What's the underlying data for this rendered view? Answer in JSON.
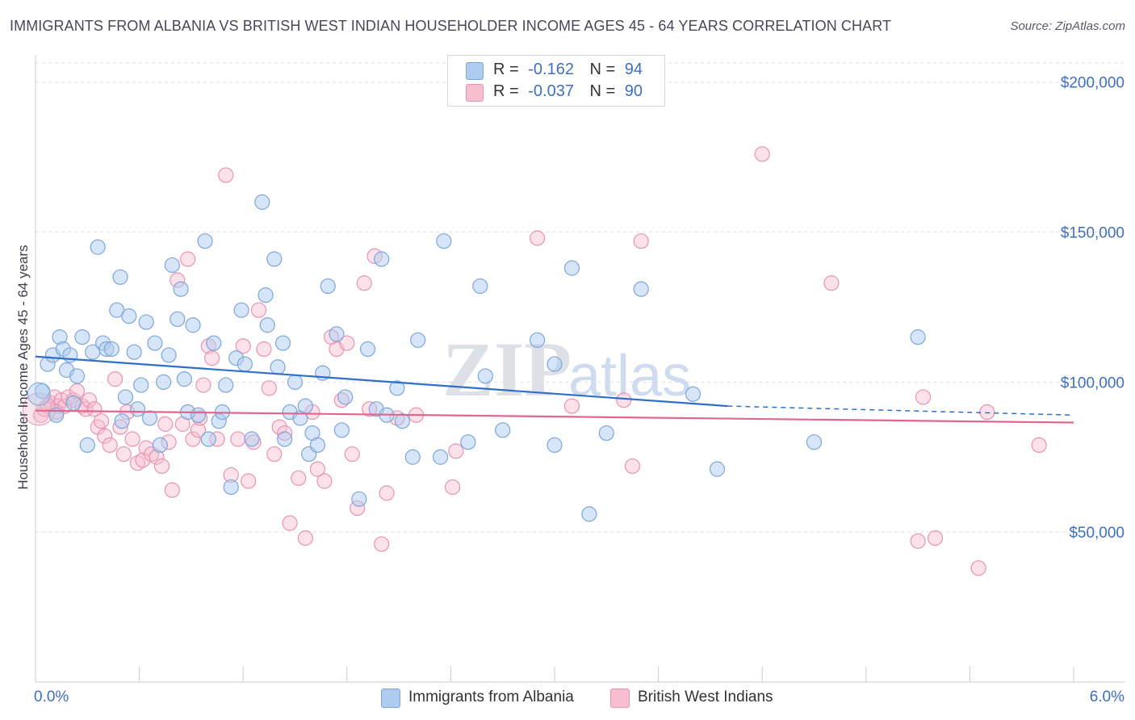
{
  "header": {
    "title": "IMMIGRANTS FROM ALBANIA VS BRITISH WEST INDIAN HOUSEHOLDER INCOME AGES 45 - 64 YEARS CORRELATION CHART",
    "source": "Source: ZipAtlas.com"
  },
  "legend": {
    "rows": [
      {
        "r_label": "R =",
        "r_value": "-0.162",
        "n_label": "N =",
        "n_value": "94"
      },
      {
        "r_label": "R =",
        "r_value": "-0.037",
        "n_label": "N =",
        "n_value": "90"
      }
    ]
  },
  "bottom_legend": {
    "items": [
      "Immigrants from Albania",
      "British West Indians"
    ]
  },
  "watermark": {
    "zip": "ZIP",
    "atlas": "atlas"
  },
  "colors": {
    "albania_fill": "#aecbf0",
    "albania_stroke": "#7ea6d9",
    "albania_line": "#2f6fcc",
    "bwi_fill": "#f6bfd0",
    "bwi_stroke": "#e993b0",
    "bwi_line": "#e0668f",
    "tick_text": "#3d6fc2",
    "grid": "#dde0e5"
  },
  "chart_data": {
    "type": "scatter",
    "title": "IMMIGRANTS FROM ALBANIA VS BRITISH WEST INDIAN HOUSEHOLDER INCOME AGES 45 - 64 YEARS CORRELATION CHART",
    "xlabel": "",
    "ylabel": "Householder Income Ages 45 - 64 years",
    "xlim": [
      0,
      6
    ],
    "ylim": [
      0,
      208000
    ],
    "x_tick_labels": [
      "0.0%",
      "6.0%"
    ],
    "y_ticks": [
      50000,
      100000,
      150000,
      200000
    ],
    "y_tick_labels": [
      "$50,000",
      "$100,000",
      "$150,000",
      "$200,000"
    ],
    "grid": true,
    "legend_position": "top-center",
    "series": [
      {
        "name": "Immigrants from Albania",
        "R": -0.162,
        "N": 94,
        "trend": {
          "x0": 0.0,
          "y0": 108500,
          "x1": 4.0,
          "y1": 92000,
          "dash_to_x": 6.0,
          "dash_to_y": 89000
        },
        "points": [
          [
            0.04,
            97000
          ],
          [
            0.07,
            106000
          ],
          [
            0.1,
            109000
          ],
          [
            0.12,
            89000
          ],
          [
            0.14,
            115000
          ],
          [
            0.16,
            111000
          ],
          [
            0.18,
            104000
          ],
          [
            0.2,
            109000
          ],
          [
            0.24,
            102000
          ],
          [
            0.27,
            115000
          ],
          [
            0.3,
            79000
          ],
          [
            0.33,
            110000
          ],
          [
            0.36,
            145000
          ],
          [
            0.39,
            113000
          ],
          [
            0.41,
            111000
          ],
          [
            0.44,
            111000
          ],
          [
            0.47,
            124000
          ],
          [
            0.49,
            135000
          ],
          [
            0.52,
            95000
          ],
          [
            0.54,
            122000
          ],
          [
            0.57,
            110000
          ],
          [
            0.59,
            91000
          ],
          [
            0.61,
            99000
          ],
          [
            0.64,
            120000
          ],
          [
            0.66,
            88000
          ],
          [
            0.69,
            113000
          ],
          [
            0.72,
            79000
          ],
          [
            0.74,
            100000
          ],
          [
            0.77,
            109000
          ],
          [
            0.79,
            139000
          ],
          [
            0.82,
            121000
          ],
          [
            0.84,
            131000
          ],
          [
            0.86,
            101000
          ],
          [
            0.88,
            90000
          ],
          [
            0.91,
            119000
          ],
          [
            0.94,
            89000
          ],
          [
            0.98,
            147000
          ],
          [
            1.0,
            81000
          ],
          [
            1.03,
            113000
          ],
          [
            1.06,
            87000
          ],
          [
            1.08,
            90000
          ],
          [
            1.1,
            99000
          ],
          [
            1.13,
            65000
          ],
          [
            1.16,
            108000
          ],
          [
            1.19,
            124000
          ],
          [
            1.21,
            106000
          ],
          [
            1.25,
            81000
          ],
          [
            1.31,
            160000
          ],
          [
            1.33,
            129000
          ],
          [
            1.34,
            119000
          ],
          [
            1.38,
            141000
          ],
          [
            1.4,
            105000
          ],
          [
            1.43,
            113000
          ],
          [
            1.44,
            81000
          ],
          [
            1.47,
            90000
          ],
          [
            1.5,
            100000
          ],
          [
            1.53,
            88000
          ],
          [
            1.56,
            92000
          ],
          [
            1.58,
            76000
          ],
          [
            1.6,
            83000
          ],
          [
            1.63,
            79000
          ],
          [
            1.66,
            103000
          ],
          [
            1.69,
            132000
          ],
          [
            1.74,
            116000
          ],
          [
            1.77,
            84000
          ],
          [
            1.79,
            95000
          ],
          [
            1.87,
            61000
          ],
          [
            1.92,
            111000
          ],
          [
            1.97,
            91000
          ],
          [
            2.0,
            141000
          ],
          [
            2.03,
            89000
          ],
          [
            2.09,
            98000
          ],
          [
            2.12,
            87000
          ],
          [
            2.18,
            75000
          ],
          [
            2.21,
            114000
          ],
          [
            2.34,
            75000
          ],
          [
            2.36,
            147000
          ],
          [
            2.5,
            80000
          ],
          [
            2.57,
            132000
          ],
          [
            2.6,
            102000
          ],
          [
            2.7,
            84000
          ],
          [
            2.9,
            114000
          ],
          [
            3.0,
            106000
          ],
          [
            3.0,
            79000
          ],
          [
            3.1,
            138000
          ],
          [
            3.2,
            56000
          ],
          [
            3.3,
            83000
          ],
          [
            3.5,
            131000
          ],
          [
            3.8,
            96000
          ],
          [
            3.94,
            71000
          ],
          [
            4.5,
            80000
          ],
          [
            5.1,
            115000
          ],
          [
            0.22,
            93000
          ],
          [
            0.5,
            87000
          ]
        ]
      },
      {
        "name": "British West Indians",
        "R": -0.037,
        "N": 90,
        "trend": {
          "x0": 0.0,
          "y0": 90500,
          "x1": 6.0,
          "y1": 86500
        },
        "points": [
          [
            0.03,
            89000
          ],
          [
            0.05,
            91000
          ],
          [
            0.07,
            92000
          ],
          [
            0.09,
            93000
          ],
          [
            0.11,
            95000
          ],
          [
            0.13,
            92000
          ],
          [
            0.15,
            94000
          ],
          [
            0.17,
            92000
          ],
          [
            0.19,
            95000
          ],
          [
            0.22,
            94000
          ],
          [
            0.24,
            97000
          ],
          [
            0.27,
            92000
          ],
          [
            0.29,
            91000
          ],
          [
            0.31,
            94000
          ],
          [
            0.34,
            91000
          ],
          [
            0.36,
            85000
          ],
          [
            0.38,
            87000
          ],
          [
            0.4,
            82000
          ],
          [
            0.43,
            79000
          ],
          [
            0.46,
            101000
          ],
          [
            0.49,
            85000
          ],
          [
            0.51,
            76000
          ],
          [
            0.53,
            90000
          ],
          [
            0.56,
            81000
          ],
          [
            0.59,
            73000
          ],
          [
            0.62,
            74000
          ],
          [
            0.64,
            78000
          ],
          [
            0.67,
            76000
          ],
          [
            0.7,
            75000
          ],
          [
            0.73,
            72000
          ],
          [
            0.75,
            86000
          ],
          [
            0.77,
            80000
          ],
          [
            0.79,
            64000
          ],
          [
            0.82,
            134000
          ],
          [
            0.85,
            86000
          ],
          [
            0.88,
            141000
          ],
          [
            0.91,
            81000
          ],
          [
            0.94,
            84000
          ],
          [
            0.97,
            99000
          ],
          [
            1.0,
            112000
          ],
          [
            1.02,
            108000
          ],
          [
            1.05,
            81000
          ],
          [
            1.1,
            169000
          ],
          [
            1.13,
            69000
          ],
          [
            1.17,
            81000
          ],
          [
            1.2,
            112000
          ],
          [
            1.23,
            67000
          ],
          [
            1.26,
            80000
          ],
          [
            1.29,
            124000
          ],
          [
            1.32,
            111000
          ],
          [
            1.35,
            98000
          ],
          [
            1.38,
            76000
          ],
          [
            1.41,
            85000
          ],
          [
            1.44,
            83000
          ],
          [
            1.47,
            53000
          ],
          [
            1.52,
            68000
          ],
          [
            1.56,
            48000
          ],
          [
            1.6,
            90000
          ],
          [
            1.63,
            71000
          ],
          [
            1.67,
            67000
          ],
          [
            1.71,
            115000
          ],
          [
            1.74,
            111000
          ],
          [
            1.77,
            94000
          ],
          [
            1.8,
            113000
          ],
          [
            1.83,
            76000
          ],
          [
            1.86,
            58000
          ],
          [
            1.9,
            133000
          ],
          [
            1.93,
            91000
          ],
          [
            1.96,
            142000
          ],
          [
            2.0,
            46000
          ],
          [
            2.03,
            63000
          ],
          [
            2.09,
            88000
          ],
          [
            2.2,
            89000
          ],
          [
            2.41,
            65000
          ],
          [
            2.43,
            77000
          ],
          [
            2.9,
            148000
          ],
          [
            3.1,
            92000
          ],
          [
            3.4,
            94000
          ],
          [
            3.45,
            72000
          ],
          [
            3.5,
            147000
          ],
          [
            4.2,
            176000
          ],
          [
            4.6,
            133000
          ],
          [
            5.1,
            47000
          ],
          [
            5.13,
            95000
          ],
          [
            5.2,
            48000
          ],
          [
            5.45,
            38000
          ],
          [
            5.5,
            90000
          ],
          [
            5.8,
            79000
          ],
          [
            0.12,
            90000
          ],
          [
            0.95,
            88000
          ]
        ]
      }
    ]
  }
}
